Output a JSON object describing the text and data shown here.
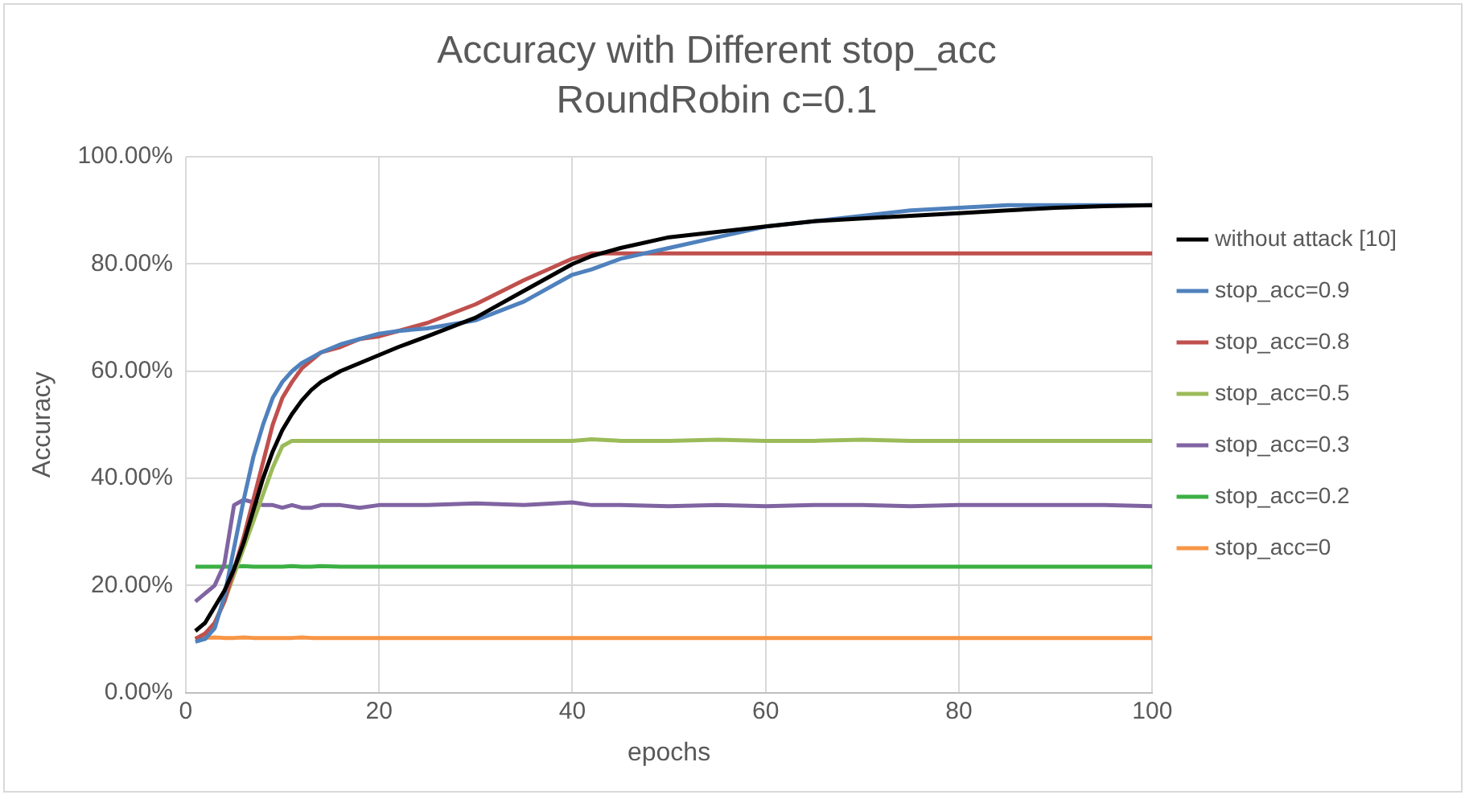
{
  "chart_data": {
    "type": "line",
    "title": "Accuracy with Different stop_acc",
    "subtitle": "RoundRobin c=0.1",
    "xlabel": "epochs",
    "ylabel": "Accuracy",
    "x": [
      1,
      2,
      3,
      4,
      5,
      6,
      7,
      8,
      9,
      10,
      11,
      12,
      13,
      14,
      16,
      18,
      20,
      22,
      25,
      30,
      35,
      40,
      42,
      45,
      50,
      55,
      60,
      65,
      70,
      75,
      80,
      85,
      90,
      95,
      100
    ],
    "series": [
      {
        "name": "without attack [10]",
        "color": "#000000",
        "values": [
          11.5,
          13,
          16,
          19,
          23,
          28,
          34,
          40,
          45,
          49,
          52,
          54.5,
          56.5,
          58,
          60,
          61.5,
          63,
          64.5,
          66.5,
          70,
          75,
          80,
          81.5,
          83,
          85,
          86,
          87,
          88,
          88.5,
          89,
          89.5,
          90,
          90.5,
          90.8,
          91
        ]
      },
      {
        "name": "stop_acc=0.9",
        "color": "#4f81bd",
        "values": [
          9.5,
          10,
          12,
          18,
          27,
          36,
          44,
          50,
          55,
          58,
          60,
          61.5,
          62.5,
          63.5,
          65,
          66,
          67,
          67.5,
          68,
          69.5,
          73,
          78,
          79,
          81,
          83,
          85,
          87,
          88,
          89,
          90,
          90.5,
          91,
          91,
          91,
          91
        ]
      },
      {
        "name": "stop_acc=0.8",
        "color": "#c0504d",
        "values": [
          10,
          11,
          13,
          17,
          23,
          29,
          36,
          43,
          50,
          55,
          58,
          60.5,
          62,
          63.5,
          64.5,
          66,
          66.5,
          67.5,
          69,
          72.5,
          77,
          81,
          82,
          82,
          82,
          82,
          82,
          82,
          82,
          82,
          82,
          82,
          82,
          82,
          82
        ]
      },
      {
        "name": "stop_acc=0.5",
        "color": "#9bbb59",
        "values": [
          10,
          10.5,
          13,
          17,
          22,
          27,
          32,
          37,
          42,
          46,
          47,
          47,
          47,
          47,
          47,
          47,
          47,
          47,
          47,
          47,
          47,
          47,
          47.3,
          47,
          47,
          47.2,
          47,
          47,
          47.2,
          47,
          47,
          47,
          47,
          47,
          47
        ]
      },
      {
        "name": "stop_acc=0.3",
        "color": "#8064a2",
        "values": [
          17,
          18.5,
          20,
          24,
          35,
          36,
          35.5,
          35,
          35,
          34.5,
          35,
          34.5,
          34.5,
          35,
          35,
          34.5,
          35,
          35,
          35,
          35.3,
          35,
          35.5,
          35,
          35,
          34.8,
          35,
          34.8,
          35,
          35,
          34.8,
          35,
          35,
          35,
          35,
          34.8
        ]
      },
      {
        "name": "stop_acc=0.2",
        "color": "#3cb043",
        "values": [
          23.5,
          23.5,
          23.5,
          23.5,
          23.5,
          23.6,
          23.5,
          23.5,
          23.5,
          23.5,
          23.6,
          23.5,
          23.5,
          23.6,
          23.5,
          23.5,
          23.5,
          23.5,
          23.5,
          23.5,
          23.5,
          23.5,
          23.5,
          23.5,
          23.5,
          23.5,
          23.5,
          23.5,
          23.5,
          23.5,
          23.5,
          23.5,
          23.5,
          23.5,
          23.5
        ]
      },
      {
        "name": "stop_acc=0",
        "color": "#f79646",
        "values": [
          10.2,
          10.2,
          10.3,
          10.2,
          10.2,
          10.3,
          10.2,
          10.2,
          10.2,
          10.2,
          10.2,
          10.3,
          10.2,
          10.2,
          10.2,
          10.2,
          10.2,
          10.2,
          10.2,
          10.2,
          10.2,
          10.2,
          10.2,
          10.2,
          10.2,
          10.2,
          10.2,
          10.2,
          10.2,
          10.2,
          10.2,
          10.2,
          10.2,
          10.2,
          10.2
        ]
      }
    ],
    "xlim": [
      0,
      100
    ],
    "xticks": [
      0,
      20,
      40,
      60,
      80,
      100
    ],
    "ylim": [
      0,
      100
    ],
    "yticks": [
      {
        "value": 0,
        "label": "0.00%"
      },
      {
        "value": 20,
        "label": "20.00%"
      },
      {
        "value": 40,
        "label": "40.00%"
      },
      {
        "value": 60,
        "label": "60.00%"
      },
      {
        "value": 80,
        "label": "80.00%"
      },
      {
        "value": 100,
        "label": "100.00%"
      }
    ],
    "grid": true,
    "legend": "right",
    "marker": "none",
    "line_style": "solid"
  }
}
